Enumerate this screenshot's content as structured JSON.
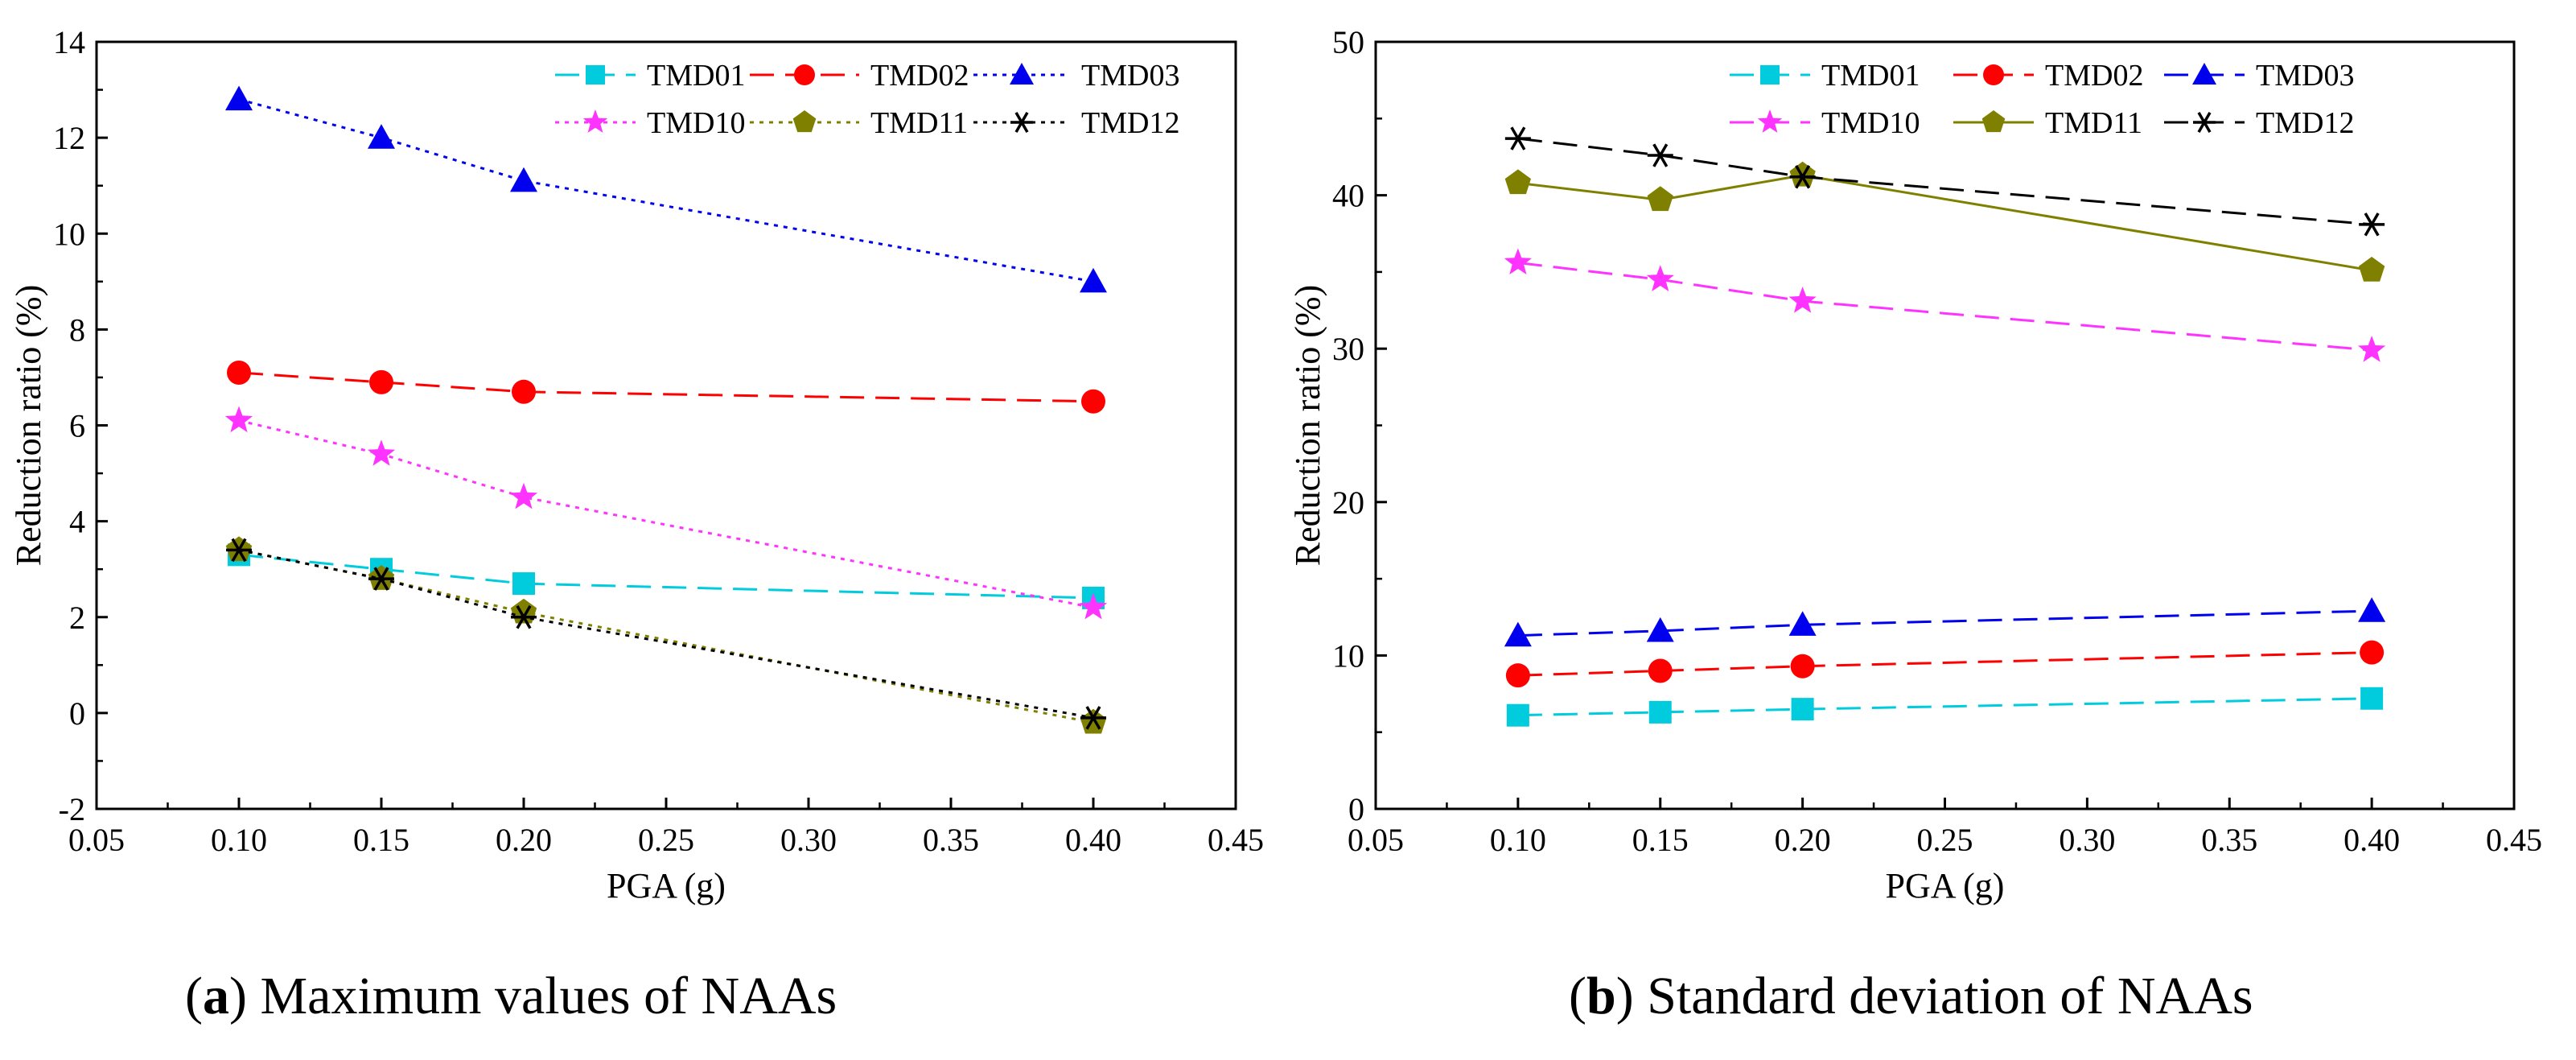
{
  "chart_data": [
    {
      "type": "line",
      "caption_letter": "a",
      "caption_text": "Maximum values of NAAs",
      "xlabel": "PGA (g)",
      "ylabel": "Reduction ratio (%)",
      "xlim": [
        0.05,
        0.45
      ],
      "ylim": [
        -2,
        14
      ],
      "xticks": [
        "0.05",
        "0.10",
        "0.15",
        "0.20",
        "0.25",
        "0.30",
        "0.35",
        "0.40",
        "0.45"
      ],
      "yticks": [
        "-2",
        "0",
        "2",
        "4",
        "6",
        "8",
        "10",
        "12",
        "14"
      ],
      "x": [
        0.1,
        0.15,
        0.2,
        0.4
      ],
      "legend_position": "top-right",
      "series": [
        {
          "name": "TMD01",
          "values": [
            3.3,
            3.0,
            2.7,
            2.4
          ],
          "color": "#00ccdd",
          "marker": "square",
          "dash": "dashed"
        },
        {
          "name": "TMD02",
          "values": [
            7.1,
            6.9,
            6.7,
            6.5
          ],
          "color": "#ff0000",
          "marker": "circle",
          "dash": "dashed"
        },
        {
          "name": "TMD03",
          "values": [
            12.8,
            12.0,
            11.1,
            9.0
          ],
          "color": "#0000ee",
          "marker": "triangle",
          "dash": "dotted"
        },
        {
          "name": "TMD10",
          "values": [
            6.1,
            5.4,
            4.5,
            2.2
          ],
          "color": "#ff33ff",
          "marker": "star",
          "dash": "dotted"
        },
        {
          "name": "TMD11",
          "values": [
            3.4,
            2.8,
            2.1,
            -0.2
          ],
          "color": "#808000",
          "marker": "pentagon",
          "dash": "dotted"
        },
        {
          "name": "TMD12",
          "values": [
            3.4,
            2.8,
            2.0,
            -0.1
          ],
          "color": "#000000",
          "marker": "asterisk",
          "dash": "dotted"
        }
      ]
    },
    {
      "type": "line",
      "caption_letter": "b",
      "caption_text": "Standard deviation of NAAs",
      "xlabel": "PGA (g)",
      "ylabel": "Reduction ratio (%)",
      "xlim": [
        0.05,
        0.45
      ],
      "ylim": [
        0,
        50
      ],
      "xticks": [
        "0.05",
        "0.10",
        "0.15",
        "0.20",
        "0.25",
        "0.30",
        "0.35",
        "0.40",
        "0.45"
      ],
      "yticks": [
        "0",
        "10",
        "20",
        "30",
        "40",
        "50"
      ],
      "x": [
        0.1,
        0.15,
        0.2,
        0.4
      ],
      "legend_position": "top-right",
      "series": [
        {
          "name": "TMD01",
          "values": [
            6.1,
            6.3,
            6.5,
            7.2
          ],
          "color": "#00ccdd",
          "marker": "square",
          "dash": "dashed"
        },
        {
          "name": "TMD02",
          "values": [
            8.7,
            9.0,
            9.3,
            10.2
          ],
          "color": "#ff0000",
          "marker": "circle",
          "dash": "dashed"
        },
        {
          "name": "TMD03",
          "values": [
            11.3,
            11.6,
            12.0,
            12.9
          ],
          "color": "#0000ee",
          "marker": "triangle",
          "dash": "dashed"
        },
        {
          "name": "TMD10",
          "values": [
            35.6,
            34.5,
            33.1,
            29.9
          ],
          "color": "#ff33ff",
          "marker": "star",
          "dash": "dashed"
        },
        {
          "name": "TMD11",
          "values": [
            40.8,
            39.7,
            41.3,
            35.1
          ],
          "color": "#808000",
          "marker": "pentagon",
          "dash": "solid"
        },
        {
          "name": "TMD12",
          "values": [
            43.7,
            42.6,
            41.2,
            38.1
          ],
          "color": "#000000",
          "marker": "asterisk",
          "dash": "dashed"
        }
      ]
    }
  ]
}
